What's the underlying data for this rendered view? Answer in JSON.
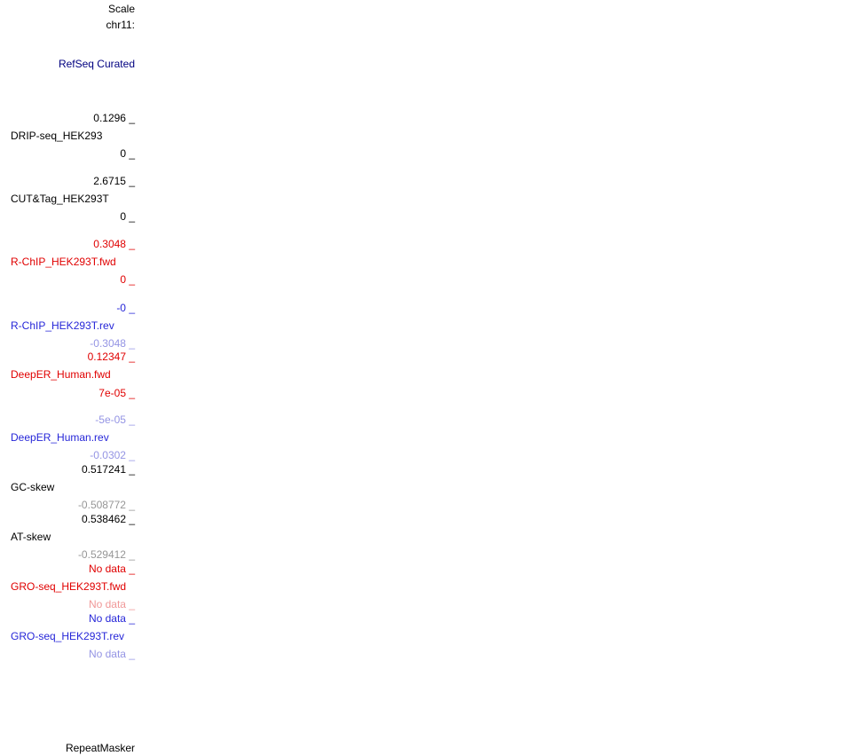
{
  "browser": {
    "scale_label": "Scale",
    "position_label": "chr11:",
    "refseq_track_label": "RefSeq Curated",
    "repeatmasker_track_label": "RepeatMasker"
  },
  "colors": {
    "background": "#ffffff",
    "text_black": "#000000",
    "value_gray": "#969696",
    "track_red": "#e00000",
    "track_red_faded": "#f09898",
    "track_blue": "#2626d8",
    "track_blue_faded": "#9494e4",
    "refseq_navy": "#000080"
  },
  "wiggle_tracks": [
    {
      "name": "DRIP-seq_HEK293",
      "max_label": "0.1296 _",
      "min_label": "0 _",
      "name_color": "#000000",
      "max_color": "#000000",
      "min_color": "#000000"
    },
    {
      "name": "CUT&Tag_HEK293T",
      "max_label": "2.6715 _",
      "min_label": "0 _",
      "name_color": "#000000",
      "max_color": "#000000",
      "min_color": "#000000"
    },
    {
      "name": "R-ChIP_HEK293T.fwd",
      "max_label": "0.3048 _",
      "min_label": "0 _",
      "name_color": "#e00000",
      "max_color": "#e00000",
      "min_color": "#e00000"
    },
    {
      "name": "R-ChIP_HEK293T.rev",
      "max_label": "-0 _",
      "min_label": "-0.3048 _",
      "name_color": "#2626d8",
      "max_color": "#2626d8",
      "min_color": "#9494e4"
    },
    {
      "name": "DeepER_Human.fwd",
      "max_label": "0.12347 _",
      "min_label": "7e-05 _",
      "name_color": "#e00000",
      "max_color": "#e00000",
      "min_color": "#e00000"
    },
    {
      "name": "DeepER_Human.rev",
      "max_label": "-5e-05 _",
      "min_label": "-0.0302 _",
      "name_color": "#2626d8",
      "max_color": "#9494e4",
      "min_color": "#9494e4"
    },
    {
      "name": "GC-skew",
      "max_label": "0.517241 _",
      "min_label": "-0.508772 _",
      "name_color": "#000000",
      "max_color": "#000000",
      "min_color": "#969696"
    },
    {
      "name": "AT-skew",
      "max_label": "0.538462 _",
      "min_label": "-0.529412 _",
      "name_color": "#000000",
      "max_color": "#000000",
      "min_color": "#969696"
    },
    {
      "name": "GRO-seq_HEK293T.fwd",
      "max_label": "No data _",
      "min_label": "No data _",
      "name_color": "#e00000",
      "max_color": "#e00000",
      "min_color": "#f09898"
    },
    {
      "name": "GRO-seq_HEK293T.rev",
      "max_label": "No data _",
      "min_label": "No data _",
      "name_color": "#2626d8",
      "max_color": "#2626d8",
      "min_color": "#9494e4"
    }
  ]
}
